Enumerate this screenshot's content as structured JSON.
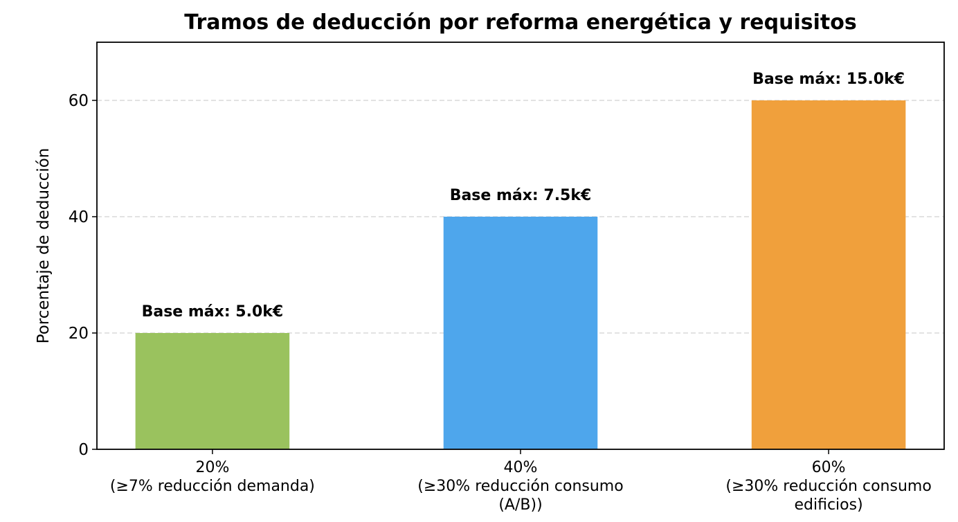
{
  "chart_data": {
    "type": "bar",
    "title": "Tramos de deducción por reforma energética y requisitos",
    "ylabel": "Porcentaje de deducción",
    "categories": [
      "20%\n(≥7% reducción demanda)",
      "40%\n(≥30% reducción consumo\n(A/B))",
      "60%\n(≥30% reducción consumo\nedificios)"
    ],
    "values": [
      20,
      40,
      60
    ],
    "colors": [
      "#9ac25e",
      "#4ea6ec",
      "#f0a03c"
    ],
    "annotations": [
      "Base máx: 5.0k€",
      "Base máx: 7.5k€",
      "Base máx: 15.0k€"
    ],
    "ylim": [
      0,
      70
    ],
    "yticks": [
      0,
      20,
      40,
      60
    ],
    "grid": true
  }
}
